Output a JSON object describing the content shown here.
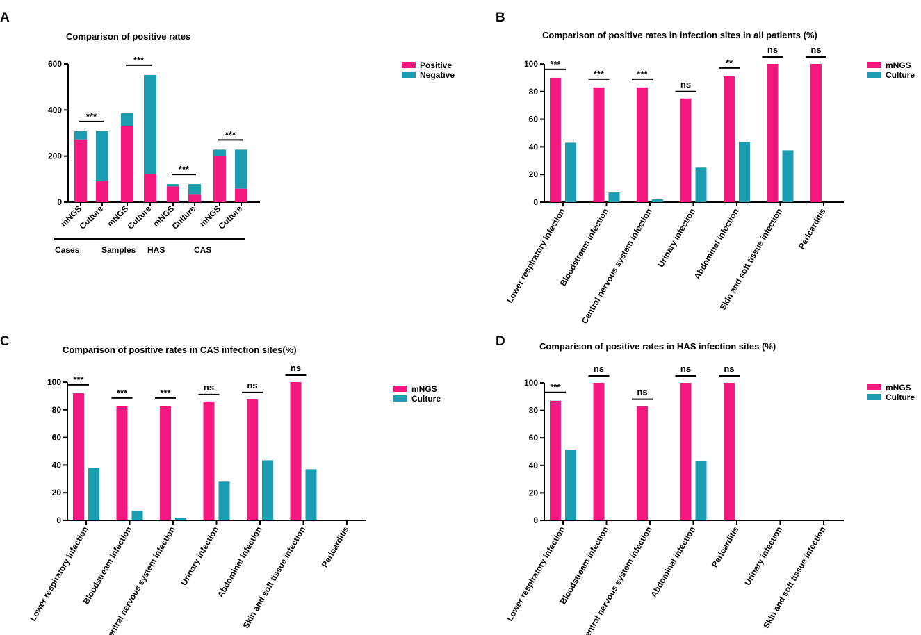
{
  "colors": {
    "mngs": "#f3197f",
    "culture": "#1b9cb1",
    "axis": "#000000"
  },
  "chart_data": [
    {
      "panel": "A",
      "type": "bar",
      "stacked": true,
      "title": "Comparison of positive rates",
      "ylim": [
        0,
        600
      ],
      "yticks": [
        0,
        200,
        400,
        600
      ],
      "series_names": [
        "Positive",
        "Negative"
      ],
      "categories": [
        {
          "label": "mNGS",
          "group": "Cases",
          "positive": 272,
          "negative": 36
        },
        {
          "label": "Culture",
          "group": "Cases",
          "positive": 93,
          "negative": 215
        },
        {
          "label": "mNGS",
          "group": "Samples",
          "positive": 329,
          "negative": 57
        },
        {
          "label": "Culture",
          "group": "Samples",
          "positive": 122,
          "negative": 430
        },
        {
          "label": "mNGS",
          "group": "HAS",
          "positive": 68,
          "negative": 10
        },
        {
          "label": "Culture",
          "group": "HAS",
          "positive": 35,
          "negative": 43
        },
        {
          "label": "mNGS",
          "group": "CAS",
          "positive": 202,
          "negative": 26
        },
        {
          "label": "Culture",
          "group": "CAS",
          "positive": 58,
          "negative": 170
        }
      ],
      "groups": [
        "Cases",
        "Samples",
        "HAS",
        "CAS"
      ],
      "significance": [
        "***",
        "***",
        "***",
        "***"
      ]
    },
    {
      "panel": "B",
      "type": "bar",
      "title": "Comparison of positive rates in infection sites in all patients (%)",
      "ylim": [
        0,
        100
      ],
      "yticks": [
        0,
        20,
        40,
        60,
        80,
        100
      ],
      "categories": [
        "Lower respiratory infection",
        "Bloodstream infection",
        "Central nervous system infection",
        "Urinary infection",
        "Abdominal infection",
        "Skin and soft tissue infection",
        "Pericarditis"
      ],
      "series": [
        {
          "name": "mNGS",
          "values": [
            90,
            83,
            83,
            75,
            91,
            100,
            100
          ]
        },
        {
          "name": "Culture",
          "values": [
            43,
            7,
            2,
            25,
            43.5,
            37.5,
            0
          ]
        }
      ],
      "significance": [
        "***",
        "***",
        "***",
        "ns",
        "**",
        "ns",
        "ns"
      ]
    },
    {
      "panel": "C",
      "type": "bar",
      "title": "Comparison of positive rates in CAS infection sites(%)",
      "ylim": [
        0,
        100
      ],
      "yticks": [
        0,
        20,
        40,
        60,
        80,
        100
      ],
      "categories": [
        "Lower respiratory infection",
        "Bloodstream infection",
        "Central nervous system infection",
        "Urinary infection",
        "Abdominal infection",
        "Skin and soft tissue infection",
        "Pericarditis"
      ],
      "series": [
        {
          "name": "mNGS",
          "values": [
            92,
            82.5,
            82.5,
            86,
            87.5,
            100,
            0
          ]
        },
        {
          "name": "Culture",
          "values": [
            38,
            7,
            2,
            28,
            43.5,
            37,
            0
          ]
        }
      ],
      "significance": [
        "***",
        "***",
        "***",
        "ns",
        "ns",
        "ns",
        ""
      ]
    },
    {
      "panel": "D",
      "type": "bar",
      "title": "Comparison of positive rates in HAS infection sites (%)",
      "ylim": [
        0,
        100
      ],
      "yticks": [
        0,
        20,
        40,
        60,
        80,
        100
      ],
      "categories": [
        "Lower respiratory infection",
        "Bloodstream infection",
        "Central nervous system infection",
        "Abdominal infection",
        "Pericarditis",
        "Urinary infection",
        "Skin and soft tissue infection"
      ],
      "series": [
        {
          "name": "mNGS",
          "values": [
            87,
            100,
            83,
            100,
            100,
            0,
            0
          ]
        },
        {
          "name": "Culture",
          "values": [
            51.5,
            0,
            0,
            43,
            0,
            0,
            0
          ]
        }
      ],
      "significance": [
        "***",
        "ns",
        "ns",
        "ns",
        "ns",
        "",
        ""
      ]
    }
  ]
}
